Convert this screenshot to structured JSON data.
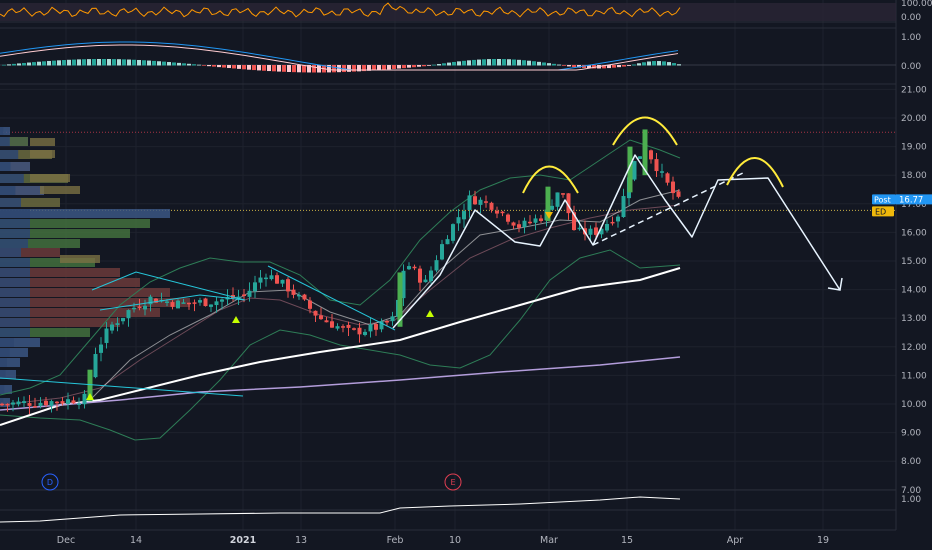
{
  "chart_data": {
    "type": "candlestick",
    "price_axis": {
      "ticks": [
        "21.00",
        "20.00",
        "19.00",
        "18.00",
        "17.00",
        "16.00",
        "15.00",
        "14.00",
        "13.00",
        "12.00",
        "11.00",
        "10.00",
        "9.00",
        "8.00",
        "7.00"
      ],
      "range": [
        6.6,
        21.2
      ]
    },
    "rsi_axis": {
      "ticks": [
        "100.00",
        "0.00"
      ]
    },
    "macd_axis": {
      "ticks": [
        "1.00",
        "0.00"
      ]
    },
    "volume_axis": {
      "ticks": [
        "1.00"
      ]
    },
    "date_ticks": [
      {
        "label": "Dec",
        "bold": false
      },
      {
        "label": "14",
        "bold": false
      },
      {
        "label": "2021",
        "bold": true
      },
      {
        "label": "13",
        "bold": false
      },
      {
        "label": "Feb",
        "bold": false
      },
      {
        "label": "10",
        "bold": false
      },
      {
        "label": "Mar",
        "bold": false
      },
      {
        "label": "15",
        "bold": false
      },
      {
        "label": "Apr",
        "bold": false
      },
      {
        "label": "19",
        "bold": false
      }
    ],
    "current_price": {
      "label": "Post",
      "value": "16.77",
      "color": "#2196f3"
    },
    "secondary_tag": {
      "label": "ED",
      "color": "#f0b90b"
    },
    "event_markers": [
      {
        "label": "D",
        "color": "#2962ff"
      },
      {
        "label": "E",
        "color": "#e03e52"
      }
    ],
    "colors": {
      "up": "#26a69a",
      "down": "#ef5350",
      "background": "#131722",
      "bollinger": "#2e7d57",
      "ma_white": "#ffffff",
      "ma_purple": "#b39ddb",
      "pattern": "#e8f4ff",
      "arcs": "#ffeb3b",
      "trendline": "#26c6da"
    }
  }
}
